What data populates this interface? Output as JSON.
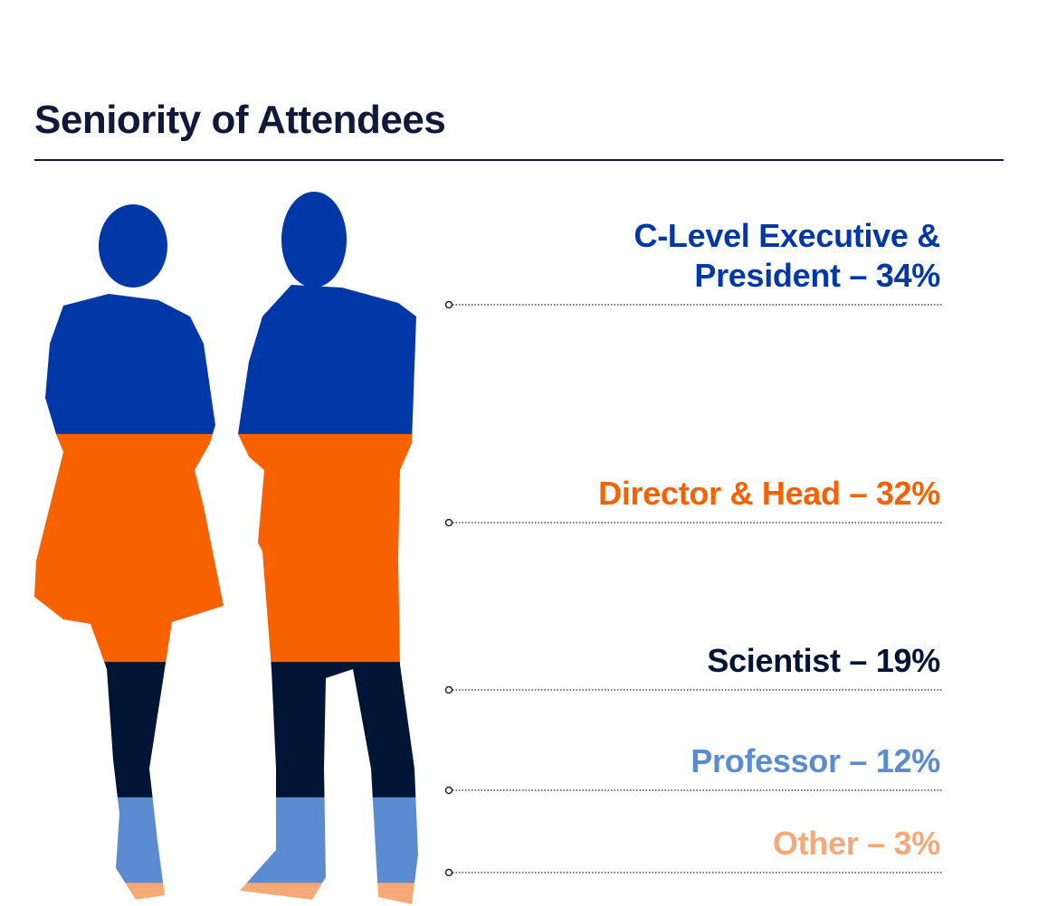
{
  "chart_data": {
    "type": "silhouette-stack",
    "title": "Seniority of Attendees",
    "categories": [
      "C-Level Executive & President – 34%",
      "Director & Head – 32%",
      "Scientist – 19%",
      "Professor – 12%",
      "Other – 3%"
    ],
    "values": [
      34,
      32,
      19,
      12,
      3
    ],
    "colors": [
      "#0038a8",
      "#f76100",
      "#001536",
      "#5b8bd0",
      "#f6a877"
    ]
  }
}
